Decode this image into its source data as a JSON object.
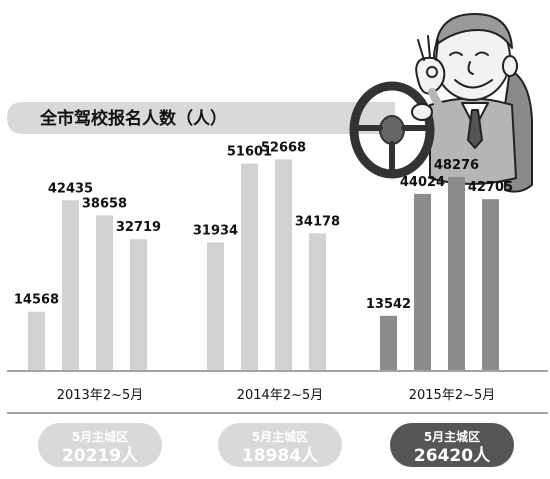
{
  "title": "全市驾校报名人数（人）",
  "chart_data": {
    "type": "bar",
    "title": "全市驾校报名人数（人）",
    "xlabel": "",
    "ylabel": "",
    "ylim": [
      0,
      60000
    ],
    "groups": [
      {
        "label": "2013年2~5月",
        "values": [
          14568,
          42435,
          38658,
          32719
        ]
      },
      {
        "label": "2014年2~5月",
        "values": [
          31934,
          51601,
          52668,
          34178
        ]
      },
      {
        "label": "2015年2~5月",
        "values": [
          13542,
          44024,
          48276,
          42705
        ]
      }
    ],
    "grid": false,
    "legend": "none"
  },
  "summaries": [
    {
      "caption": "5月主城区",
      "value": "20219人"
    },
    {
      "caption": "5月主城区",
      "value": "18984人"
    },
    {
      "caption": "5月主城区",
      "value": "26420人"
    }
  ],
  "colors": {
    "bar_light": "#d2d2d2",
    "bar_dark": "#8c8c8c",
    "text": "#111111",
    "banner": "#d9d9d9",
    "pill_light": "#d9d9d9",
    "pill_dark": "#555555"
  },
  "illustration": "cartoon-driver-with-steering-wheel"
}
